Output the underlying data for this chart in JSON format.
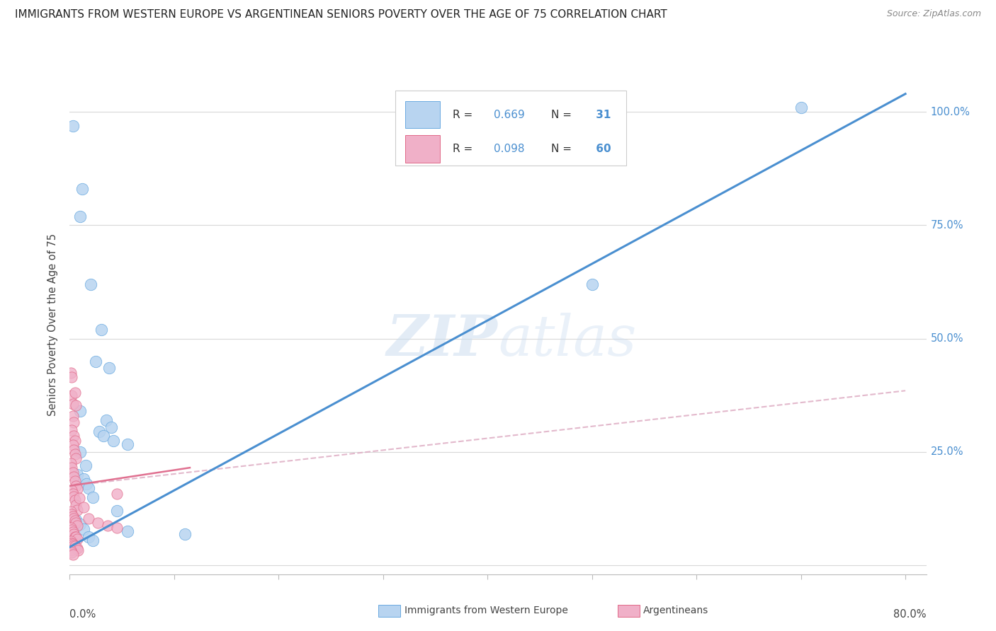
{
  "title": "IMMIGRANTS FROM WESTERN EUROPE VS ARGENTINEAN SENIORS POVERTY OVER THE AGE OF 75 CORRELATION CHART",
  "source": "Source: ZipAtlas.com",
  "ylabel": "Seniors Poverty Over the Age of 75",
  "watermark": "ZIPatlas",
  "legend": {
    "blue_R": "0.669",
    "blue_N": "31",
    "pink_R": "0.098",
    "pink_N": "60"
  },
  "blue_scatter": [
    [
      0.003,
      0.97
    ],
    [
      0.012,
      0.83
    ],
    [
      0.01,
      0.77
    ],
    [
      0.02,
      0.62
    ],
    [
      0.03,
      0.52
    ],
    [
      0.025,
      0.45
    ],
    [
      0.038,
      0.435
    ],
    [
      0.01,
      0.34
    ],
    [
      0.035,
      0.32
    ],
    [
      0.04,
      0.305
    ],
    [
      0.028,
      0.295
    ],
    [
      0.032,
      0.285
    ],
    [
      0.042,
      0.275
    ],
    [
      0.055,
      0.267
    ],
    [
      0.01,
      0.25
    ],
    [
      0.015,
      0.22
    ],
    [
      0.007,
      0.2
    ],
    [
      0.013,
      0.19
    ],
    [
      0.016,
      0.18
    ],
    [
      0.018,
      0.17
    ],
    [
      0.022,
      0.15
    ],
    [
      0.045,
      0.12
    ],
    [
      0.006,
      0.1
    ],
    [
      0.01,
      0.09
    ],
    [
      0.013,
      0.08
    ],
    [
      0.055,
      0.075
    ],
    [
      0.018,
      0.063
    ],
    [
      0.022,
      0.055
    ],
    [
      0.7,
      1.01
    ],
    [
      0.5,
      0.62
    ],
    [
      0.11,
      0.068
    ]
  ],
  "pink_scatter": [
    [
      0.001,
      0.425
    ],
    [
      0.002,
      0.375
    ],
    [
      0.003,
      0.355
    ],
    [
      0.003,
      0.33
    ],
    [
      0.004,
      0.315
    ],
    [
      0.002,
      0.298
    ],
    [
      0.004,
      0.285
    ],
    [
      0.005,
      0.275
    ],
    [
      0.003,
      0.265
    ],
    [
      0.004,
      0.255
    ],
    [
      0.005,
      0.245
    ],
    [
      0.006,
      0.235
    ],
    [
      0.001,
      0.225
    ],
    [
      0.002,
      0.215
    ],
    [
      0.003,
      0.205
    ],
    [
      0.004,
      0.195
    ],
    [
      0.005,
      0.185
    ],
    [
      0.006,
      0.175
    ],
    [
      0.007,
      0.168
    ],
    [
      0.002,
      0.165
    ],
    [
      0.003,
      0.158
    ],
    [
      0.004,
      0.152
    ],
    [
      0.005,
      0.143
    ],
    [
      0.006,
      0.132
    ],
    [
      0.007,
      0.122
    ],
    [
      0.001,
      0.118
    ],
    [
      0.002,
      0.113
    ],
    [
      0.003,
      0.108
    ],
    [
      0.004,
      0.103
    ],
    [
      0.005,
      0.098
    ],
    [
      0.006,
      0.093
    ],
    [
      0.007,
      0.088
    ],
    [
      0.001,
      0.083
    ],
    [
      0.002,
      0.078
    ],
    [
      0.003,
      0.073
    ],
    [
      0.004,
      0.068
    ],
    [
      0.005,
      0.063
    ],
    [
      0.006,
      0.062
    ],
    [
      0.007,
      0.058
    ],
    [
      0.001,
      0.053
    ],
    [
      0.002,
      0.048
    ],
    [
      0.003,
      0.046
    ],
    [
      0.004,
      0.043
    ],
    [
      0.005,
      0.042
    ],
    [
      0.006,
      0.038
    ],
    [
      0.007,
      0.037
    ],
    [
      0.008,
      0.033
    ],
    [
      0.001,
      0.032
    ],
    [
      0.002,
      0.028
    ],
    [
      0.003,
      0.023
    ],
    [
      0.009,
      0.148
    ],
    [
      0.013,
      0.128
    ],
    [
      0.018,
      0.103
    ],
    [
      0.027,
      0.093
    ],
    [
      0.036,
      0.088
    ],
    [
      0.045,
      0.083
    ],
    [
      0.002,
      0.415
    ],
    [
      0.005,
      0.38
    ],
    [
      0.006,
      0.352
    ],
    [
      0.045,
      0.158
    ]
  ],
  "blue_line": {
    "x": [
      0.0,
      0.8
    ],
    "y": [
      0.04,
      1.04
    ]
  },
  "pink_line_solid": {
    "x": [
      0.0,
      0.115
    ],
    "y": [
      0.175,
      0.215
    ]
  },
  "pink_line_dashed": {
    "x": [
      0.0,
      0.8
    ],
    "y": [
      0.175,
      0.385
    ]
  },
  "xlim": [
    0.0,
    0.82
  ],
  "ylim": [
    -0.02,
    1.08
  ],
  "blue_color": "#b8d4f0",
  "blue_edge_color": "#6aaae0",
  "pink_color": "#f0b0c8",
  "pink_edge_color": "#e06888",
  "blue_line_color": "#4a8fd0",
  "pink_solid_color": "#e07090",
  "pink_dashed_color": "#dca8c0",
  "grid_color": "#d8d8d8",
  "background": "#ffffff",
  "title_fontsize": 11,
  "source_fontsize": 9,
  "axis_label_color": "#4a8fd0",
  "bottom_label_color": "#444444"
}
